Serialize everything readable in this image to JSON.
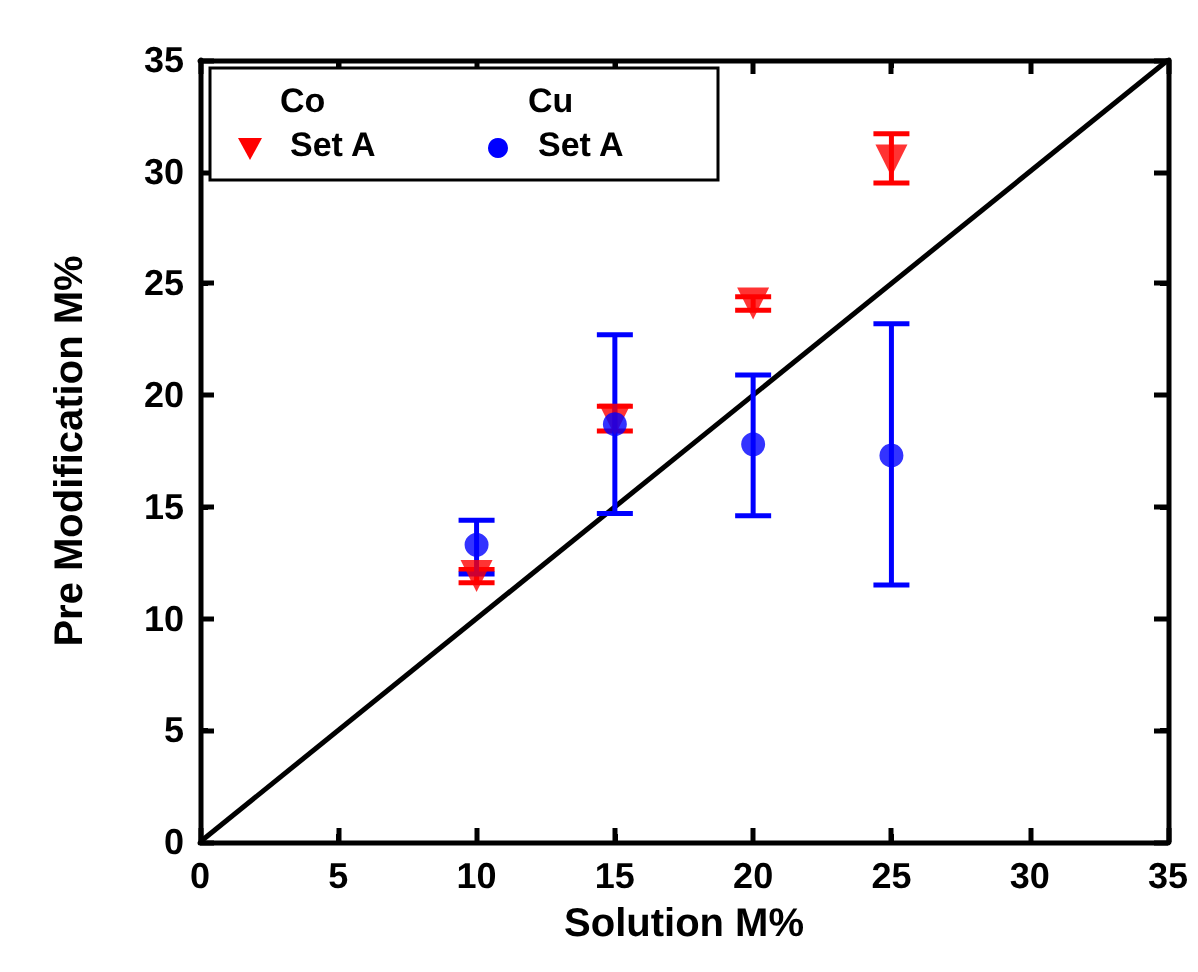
{
  "chart_data": {
    "type": "scatter",
    "xlabel": "Solution M%",
    "ylabel": "Pre Modification M%",
    "xlim": [
      0,
      35
    ],
    "ylim": [
      0,
      35
    ],
    "xticks": [
      0,
      5,
      10,
      15,
      20,
      25,
      30,
      35
    ],
    "yticks": [
      0,
      5,
      10,
      15,
      20,
      25,
      30,
      35
    ],
    "grid": false,
    "legend": "top left",
    "annotations": [
      "Co",
      "Cu"
    ],
    "series": [
      {
        "name": "Set A",
        "marker": "triangle",
        "color": "#ff0000",
        "x": [
          10,
          15,
          20,
          25
        ],
        "values": [
          11.9,
          18.9,
          24.1,
          30.5
        ],
        "errors": [
          [
            11.6,
            12.2
          ],
          [
            18.4,
            19.5
          ],
          [
            23.8,
            24.4
          ],
          [
            29.5,
            31.7
          ]
        ]
      },
      {
        "name": "Set A",
        "marker": "circle",
        "color": "#0000ff",
        "x": [
          10,
          15,
          20,
          25
        ],
        "values": [
          13.3,
          18.7,
          17.8,
          17.3
        ],
        "errors": [
          [
            12.0,
            14.4
          ],
          [
            14.7,
            22.7
          ],
          [
            14.6,
            20.9
          ],
          [
            11.5,
            23.2
          ]
        ]
      },
      {
        "type": "line",
        "marker": "none",
        "color": "#000000",
        "x": [
          0,
          35
        ],
        "values": [
          0,
          35
        ]
      }
    ]
  }
}
